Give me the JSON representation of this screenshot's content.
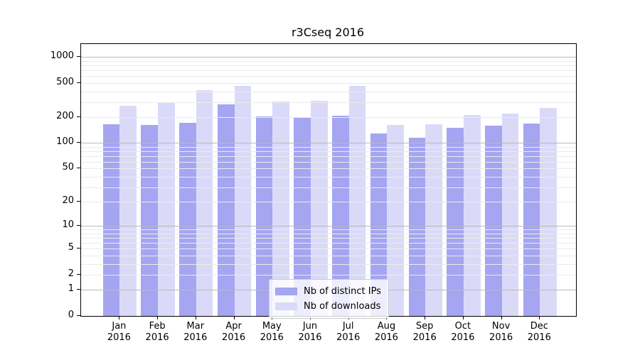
{
  "chart_data": {
    "type": "bar",
    "title": "r3Cseq 2016",
    "categories": [
      "Jan",
      "Feb",
      "Mar",
      "Apr",
      "May",
      "Jun",
      "Jul",
      "Aug",
      "Sep",
      "Oct",
      "Nov",
      "Dec"
    ],
    "category_year": "2016",
    "series": [
      {
        "name": "Nb of distinct IPs",
        "color": "#a5a5f2",
        "values": [
          164,
          163,
          173,
          283,
          202,
          197,
          209,
          129,
          116,
          151,
          160,
          170
        ]
      },
      {
        "name": "Nb of downloads",
        "color": "#dadaf8",
        "values": [
          271,
          292,
          408,
          457,
          301,
          307,
          463,
          162,
          166,
          210,
          220,
          254
        ]
      }
    ],
    "y_tick_labels": [
      "0",
      "1",
      "2",
      "5",
      "10",
      "20",
      "50",
      "100",
      "200",
      "500",
      "1000"
    ],
    "y_scale": "log10(value+1)",
    "ylim": [
      0,
      1420
    ],
    "xlabel": "",
    "ylabel": "",
    "grid": true,
    "legend_position": "lower center",
    "colors": {
      "major_grid": "#b9b9b9",
      "minor_grid": "#ebebeb",
      "spine": "#000000"
    }
  }
}
